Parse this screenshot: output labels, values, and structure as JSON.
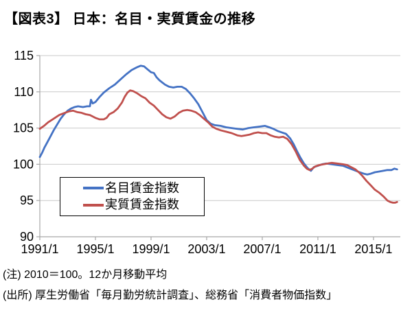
{
  "header": {
    "title": "【図表3】 日本：名目・実質賃金の推移"
  },
  "notes": {
    "note": "(注) 2010＝100。12か月移動平均",
    "source": "(出所) 厚生労働省「毎月勤労統計調査」、総務省「消費者物価指数」"
  },
  "colors": {
    "nominal_blue": "#4472C4",
    "real_red": "#C0504D",
    "gridline": "#C9C9C9",
    "axis": "#A6A6A6",
    "text": "#000000"
  },
  "chart_data": {
    "type": "line",
    "title": "【図表3】 日本：名目・実質賃金の推移",
    "xlabel": "",
    "ylabel": "",
    "xlim": [
      1991,
      2016.93
    ],
    "ylim": [
      90,
      115
    ],
    "grid": "horizontal",
    "legend_position": "inside-lower-left",
    "x_tick_labels": [
      "1991/1",
      "1995/1",
      "1999/1",
      "2003/1",
      "2007/1",
      "2011/1",
      "2015/1"
    ],
    "x_tick_years": [
      1991,
      1995,
      1999,
      2003,
      2007,
      2011,
      2015
    ],
    "y_ticks": [
      90,
      95,
      100,
      105,
      110,
      115
    ],
    "series": [
      {
        "name": "名目賃金指数",
        "key": "nominal-wage",
        "color": "#4472C4",
        "points": [
          [
            1991.0,
            101.0
          ],
          [
            1991.17,
            101.6
          ],
          [
            1991.33,
            102.3
          ],
          [
            1991.5,
            102.9
          ],
          [
            1991.75,
            103.8
          ],
          [
            1992.0,
            104.7
          ],
          [
            1992.25,
            105.5
          ],
          [
            1992.5,
            106.3
          ],
          [
            1992.75,
            106.9
          ],
          [
            1993.0,
            107.4
          ],
          [
            1993.25,
            107.7
          ],
          [
            1993.5,
            107.9
          ],
          [
            1993.75,
            108.0
          ],
          [
            1994.1,
            107.9
          ],
          [
            1994.4,
            108.0
          ],
          [
            1994.6,
            108.0
          ],
          [
            1994.68,
            108.9
          ],
          [
            1994.8,
            108.4
          ],
          [
            1995.0,
            108.6
          ],
          [
            1995.3,
            109.3
          ],
          [
            1995.6,
            109.9
          ],
          [
            1996.0,
            110.5
          ],
          [
            1996.4,
            111.0
          ],
          [
            1996.8,
            111.7
          ],
          [
            1997.2,
            112.4
          ],
          [
            1997.6,
            113.0
          ],
          [
            1998.0,
            113.4
          ],
          [
            1998.25,
            113.6
          ],
          [
            1998.5,
            113.5
          ],
          [
            1998.75,
            113.1
          ],
          [
            1999.0,
            112.7
          ],
          [
            1999.2,
            112.6
          ],
          [
            1999.4,
            112.0
          ],
          [
            1999.6,
            111.6
          ],
          [
            1999.8,
            111.3
          ],
          [
            2000.0,
            111.0
          ],
          [
            2000.3,
            110.7
          ],
          [
            2000.6,
            110.6
          ],
          [
            2000.9,
            110.7
          ],
          [
            2001.2,
            110.7
          ],
          [
            2001.5,
            110.4
          ],
          [
            2001.8,
            109.8
          ],
          [
            2002.1,
            109.1
          ],
          [
            2002.4,
            108.3
          ],
          [
            2002.7,
            107.2
          ],
          [
            2003.0,
            106.1
          ],
          [
            2003.3,
            105.6
          ],
          [
            2003.6,
            105.4
          ],
          [
            2004.0,
            105.3
          ],
          [
            2004.4,
            105.1
          ],
          [
            2004.8,
            105.0
          ],
          [
            2005.2,
            104.9
          ],
          [
            2005.6,
            104.8
          ],
          [
            2006.0,
            105.0
          ],
          [
            2006.4,
            105.1
          ],
          [
            2006.8,
            105.2
          ],
          [
            2007.2,
            105.3
          ],
          [
            2007.5,
            105.1
          ],
          [
            2007.8,
            104.9
          ],
          [
            2008.1,
            104.6
          ],
          [
            2008.4,
            104.4
          ],
          [
            2008.7,
            104.2
          ],
          [
            2009.0,
            103.6
          ],
          [
            2009.25,
            102.8
          ],
          [
            2009.5,
            101.8
          ],
          [
            2009.75,
            100.9
          ],
          [
            2010.0,
            100.1
          ],
          [
            2010.25,
            99.5
          ],
          [
            2010.5,
            99.1
          ],
          [
            2010.7,
            99.6
          ],
          [
            2011.0,
            99.8
          ],
          [
            2011.3,
            100.0
          ],
          [
            2011.6,
            100.1
          ],
          [
            2012.0,
            100.0
          ],
          [
            2012.4,
            99.9
          ],
          [
            2012.8,
            99.8
          ],
          [
            2013.2,
            99.5
          ],
          [
            2013.6,
            99.2
          ],
          [
            2014.0,
            98.9
          ],
          [
            2014.3,
            98.7
          ],
          [
            2014.55,
            98.6
          ],
          [
            2014.8,
            98.7
          ],
          [
            2015.1,
            98.9
          ],
          [
            2015.4,
            99.0
          ],
          [
            2015.7,
            99.1
          ],
          [
            2016.0,
            99.2
          ],
          [
            2016.3,
            99.2
          ],
          [
            2016.5,
            99.4
          ],
          [
            2016.7,
            99.3
          ]
        ]
      },
      {
        "name": "実質賃金指数",
        "key": "real-wage",
        "color": "#C0504D",
        "points": [
          [
            1991.0,
            104.9
          ],
          [
            1991.3,
            105.3
          ],
          [
            1991.6,
            105.8
          ],
          [
            1992.0,
            106.3
          ],
          [
            1992.4,
            106.8
          ],
          [
            1992.8,
            107.1
          ],
          [
            1993.1,
            107.3
          ],
          [
            1993.4,
            107.4
          ],
          [
            1993.7,
            107.2
          ],
          [
            1994.0,
            107.1
          ],
          [
            1994.3,
            106.9
          ],
          [
            1994.6,
            106.8
          ],
          [
            1995.0,
            106.4
          ],
          [
            1995.3,
            106.2
          ],
          [
            1995.6,
            106.2
          ],
          [
            1995.8,
            106.4
          ],
          [
            1996.0,
            106.9
          ],
          [
            1996.3,
            107.2
          ],
          [
            1996.6,
            107.7
          ],
          [
            1996.9,
            108.5
          ],
          [
            1997.1,
            109.3
          ],
          [
            1997.3,
            109.9
          ],
          [
            1997.5,
            110.2
          ],
          [
            1997.7,
            110.1
          ],
          [
            1998.0,
            109.8
          ],
          [
            1998.3,
            109.4
          ],
          [
            1998.6,
            109.1
          ],
          [
            1998.9,
            108.5
          ],
          [
            1999.2,
            108.1
          ],
          [
            1999.5,
            107.5
          ],
          [
            1999.8,
            106.9
          ],
          [
            2000.1,
            106.5
          ],
          [
            2000.4,
            106.3
          ],
          [
            2000.7,
            106.6
          ],
          [
            2001.0,
            107.1
          ],
          [
            2001.3,
            107.4
          ],
          [
            2001.6,
            107.5
          ],
          [
            2001.9,
            107.4
          ],
          [
            2002.2,
            107.2
          ],
          [
            2002.5,
            106.8
          ],
          [
            2002.8,
            106.3
          ],
          [
            2003.1,
            105.8
          ],
          [
            2003.4,
            105.2
          ],
          [
            2003.7,
            104.9
          ],
          [
            2004.0,
            104.7
          ],
          [
            2004.4,
            104.5
          ],
          [
            2004.8,
            104.3
          ],
          [
            2005.2,
            104.0
          ],
          [
            2005.5,
            103.9
          ],
          [
            2005.8,
            104.0
          ],
          [
            2006.1,
            104.1
          ],
          [
            2006.4,
            104.3
          ],
          [
            2006.7,
            104.4
          ],
          [
            2007.0,
            104.3
          ],
          [
            2007.3,
            104.3
          ],
          [
            2007.6,
            104.0
          ],
          [
            2007.9,
            103.8
          ],
          [
            2008.2,
            103.7
          ],
          [
            2008.5,
            103.8
          ],
          [
            2008.8,
            103.5
          ],
          [
            2009.1,
            102.8
          ],
          [
            2009.4,
            101.8
          ],
          [
            2009.7,
            100.6
          ],
          [
            2010.0,
            99.8
          ],
          [
            2010.2,
            99.4
          ],
          [
            2010.4,
            99.2
          ],
          [
            2010.6,
            99.4
          ],
          [
            2010.8,
            99.7
          ],
          [
            2011.1,
            99.9
          ],
          [
            2011.4,
            100.0
          ],
          [
            2011.7,
            100.1
          ],
          [
            2012.0,
            100.2
          ],
          [
            2012.4,
            100.1
          ],
          [
            2012.8,
            100.0
          ],
          [
            2013.1,
            99.9
          ],
          [
            2013.4,
            99.6
          ],
          [
            2013.7,
            99.3
          ],
          [
            2014.0,
            98.8
          ],
          [
            2014.2,
            98.4
          ],
          [
            2014.5,
            97.7
          ],
          [
            2014.8,
            97.1
          ],
          [
            2015.1,
            96.5
          ],
          [
            2015.4,
            96.1
          ],
          [
            2015.7,
            95.6
          ],
          [
            2016.0,
            95.0
          ],
          [
            2016.2,
            94.8
          ],
          [
            2016.4,
            94.7
          ],
          [
            2016.55,
            94.7
          ],
          [
            2016.7,
            94.8
          ]
        ]
      }
    ]
  }
}
